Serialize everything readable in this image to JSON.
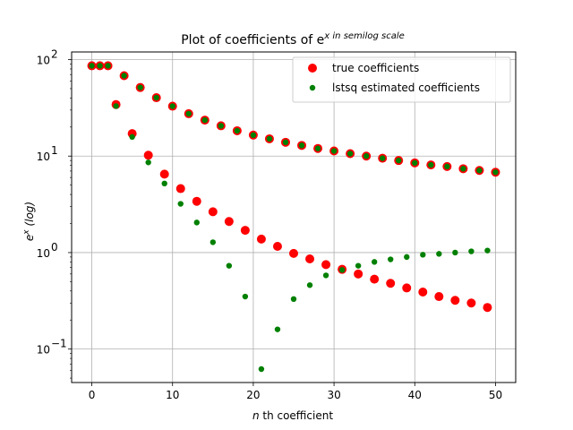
{
  "chart_data": {
    "type": "scatter",
    "title": "Plot of coefficients of e^x in semilog scale",
    "xlabel": "n th coefficient",
    "ylabel": "e^x (log)",
    "yscale": "log",
    "xlim": [
      -2.5,
      52.5
    ],
    "ylim": [
      0.045,
      120
    ],
    "grid": true,
    "legend_position": "top-right",
    "x_ticks": [
      0,
      10,
      20,
      30,
      40,
      50
    ],
    "x_tick_labels": [
      "0",
      "10",
      "20",
      "30",
      "40",
      "50"
    ],
    "y_ticks": [
      0.1,
      1,
      10,
      100
    ],
    "y_tick_labels": [
      "10",
      "10",
      "10",
      "10"
    ],
    "y_tick_exponents": [
      "−1",
      "0",
      "1",
      "2"
    ],
    "series": [
      {
        "name": "true coefficients",
        "color": "#ff0000",
        "marker_size": "large",
        "x": [
          0,
          1,
          2,
          3,
          4,
          5,
          6,
          7,
          8,
          9,
          10,
          11,
          12,
          13,
          14,
          15,
          16,
          17,
          18,
          19,
          20,
          21,
          22,
          23,
          24,
          25,
          26,
          27,
          28,
          29,
          30,
          31,
          32,
          33,
          34,
          35,
          36,
          37,
          38,
          39,
          40,
          41,
          42,
          43,
          44,
          45,
          46,
          47,
          48,
          49,
          50
        ],
        "y": [
          86.3,
          86.3,
          86.3,
          34.2,
          68.1,
          17.1,
          51.4,
          10.2,
          40.3,
          6.5,
          32.9,
          4.6,
          27.5,
          3.4,
          23.6,
          2.65,
          20.6,
          2.1,
          18.3,
          1.7,
          16.5,
          1.38,
          15.1,
          1.16,
          13.9,
          0.98,
          12.9,
          0.86,
          12.0,
          0.75,
          11.3,
          0.67,
          10.6,
          0.6,
          10.0,
          0.53,
          9.5,
          0.48,
          9.0,
          0.43,
          8.5,
          0.39,
          8.1,
          0.35,
          7.8,
          0.32,
          7.4,
          0.3,
          7.1,
          0.27,
          6.8
        ]
      },
      {
        "name": "lstsq estimated coefficients",
        "color": "#008000",
        "marker_size": "small",
        "x": [
          0,
          1,
          2,
          3,
          4,
          5,
          6,
          7,
          8,
          9,
          10,
          11,
          12,
          13,
          14,
          15,
          16,
          17,
          18,
          19,
          20,
          21,
          22,
          23,
          24,
          25,
          26,
          27,
          28,
          29,
          30,
          31,
          32,
          33,
          34,
          35,
          36,
          37,
          38,
          39,
          40,
          41,
          42,
          43,
          44,
          45,
          46,
          47,
          48,
          49,
          50
        ],
        "y": [
          86.3,
          86.3,
          86.3,
          33.0,
          68.1,
          15.8,
          51.4,
          8.6,
          40.3,
          5.2,
          32.9,
          3.2,
          27.5,
          2.05,
          23.6,
          1.28,
          20.6,
          0.73,
          18.3,
          0.35,
          16.5,
          0.062,
          15.1,
          0.16,
          13.9,
          0.33,
          12.9,
          0.46,
          12.0,
          0.58,
          11.3,
          0.66,
          10.6,
          0.73,
          10.0,
          0.8,
          9.5,
          0.85,
          9.0,
          0.9,
          8.5,
          0.95,
          8.1,
          0.97,
          7.8,
          1.0,
          7.4,
          1.03,
          7.1,
          1.05,
          6.8
        ]
      }
    ]
  }
}
